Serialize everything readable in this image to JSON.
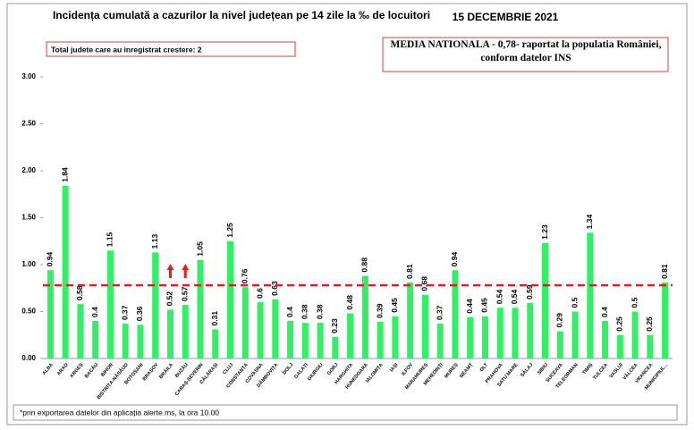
{
  "chart_data": {
    "type": "bar",
    "title": "Incidența cumulată a cazurilor la nivel județean pe 14 zile la ‰ de locuitori",
    "date": "15 DECEMBRIE 2021",
    "note_increase": "Total judete care au inregistrat crestere: 2",
    "note_mean": "MEDIA NATIONALA - 0,78-  raportat la populatia României, conform datelor INS",
    "footnote": "*prin exportarea datelor din aplicația alerte.ms, la ora 10.00",
    "categories": [
      "ALBA",
      "ARAD",
      "ARGEȘ",
      "BACĂU",
      "BIHOR",
      "BISTRIȚA-NĂSĂUD",
      "BOTOȘANI",
      "BRAȘOV",
      "BRĂILA",
      "BUZĂU",
      "CARAȘ-SEVERIN",
      "CĂLĂRAȘI",
      "CLUJ",
      "CONSTANȚA",
      "COVASNA",
      "DÂMBOVIȚA",
      "DOLJ",
      "GALAȚI",
      "GIURGIU",
      "GORJ",
      "HARGHITA",
      "HUNEDOARA",
      "IALOMIȚA",
      "IAȘI",
      "ILFOV",
      "MARAMUREȘ",
      "MEHEDINȚI",
      "MUREȘ",
      "NEAMȚ",
      "OLT",
      "PRAHOVA",
      "SATU MARE",
      "SĂLAJ",
      "SIBIU",
      "SUCEAVA",
      "TELEORMAN",
      "TIMIȘ",
      "TULCEA",
      "VASLUI",
      "VÂLCEA",
      "VRANCEA",
      "MUNICIPIUL..."
    ],
    "values": [
      0.94,
      1.84,
      0.58,
      0.4,
      1.15,
      0.37,
      0.36,
      1.13,
      0.52,
      0.57,
      1.05,
      0.31,
      1.25,
      0.76,
      0.6,
      0.63,
      0.4,
      0.38,
      0.38,
      0.23,
      0.48,
      0.88,
      0.39,
      0.45,
      0.81,
      0.68,
      0.37,
      0.94,
      0.44,
      0.45,
      0.54,
      0.54,
      0.59,
      1.23,
      0.29,
      0.5,
      1.34,
      0.4,
      0.25,
      0.5,
      0.25,
      0.81
    ],
    "color": "#33ee66",
    "increased": [
      "BRĂILA",
      "BUZĂU"
    ],
    "mean_line": 0.78,
    "mean_color": "#e02020",
    "ylim": [
      0,
      3
    ],
    "yticks": [
      {
        "value": 0,
        "label": "0.00"
      },
      {
        "value": 0.5,
        "label": "0.50"
      },
      {
        "value": 1,
        "label": "1.00"
      },
      {
        "value": 1.5,
        "label": "1.50"
      },
      {
        "value": 2,
        "label": "2.00"
      },
      {
        "value": 2.5,
        "label": "2.50"
      },
      {
        "value": 3,
        "label": "3.00"
      }
    ],
    "grid": false
  }
}
